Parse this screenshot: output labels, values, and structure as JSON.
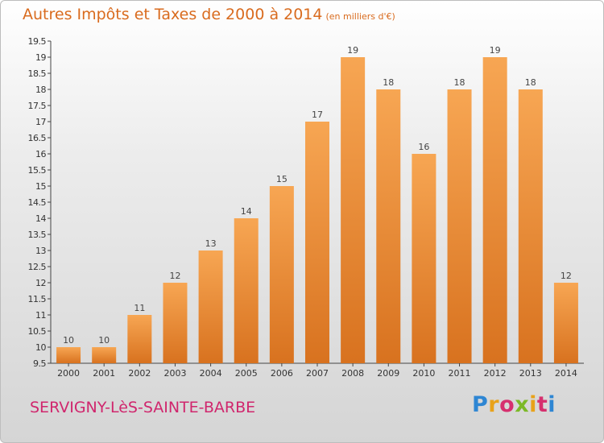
{
  "title": {
    "main": "Autres Impôts et Taxes de 2000 à 2014",
    "unit": "(en milliers d'€)"
  },
  "commune": "SERVIGNY-LèS-SAINTE-BARBE",
  "logo": {
    "letters": [
      "P",
      "r",
      "o",
      "x",
      "i",
      "t",
      "i"
    ]
  },
  "colors": {
    "bar_light": "#f7a653",
    "bar_dark": "#d8721f",
    "title": "#d96b1e",
    "commune": "#d0266d"
  },
  "chart_data": {
    "type": "bar",
    "title": "Autres Impôts et Taxes de 2000 à 2014",
    "subtitle": "(en milliers d'€)",
    "xlabel": "",
    "ylabel": "",
    "categories": [
      "2000",
      "2001",
      "2002",
      "2003",
      "2004",
      "2005",
      "2006",
      "2007",
      "2008",
      "2009",
      "2010",
      "2011",
      "2012",
      "2013",
      "2014"
    ],
    "values": [
      10,
      10,
      11,
      12,
      13,
      14,
      15,
      17,
      19,
      18,
      16,
      18,
      19,
      18,
      12
    ],
    "ylim": [
      9.5,
      19.5
    ],
    "yticks": [
      "9.5",
      "10",
      "10.5",
      "11",
      "11.5",
      "12",
      "12.5",
      "13",
      "13.5",
      "14",
      "14.5",
      "15",
      "15.5",
      "16",
      "16.5",
      "17",
      "17.5",
      "18",
      "18.5",
      "19",
      "19.5"
    ],
    "grid": false,
    "legend": "none"
  }
}
